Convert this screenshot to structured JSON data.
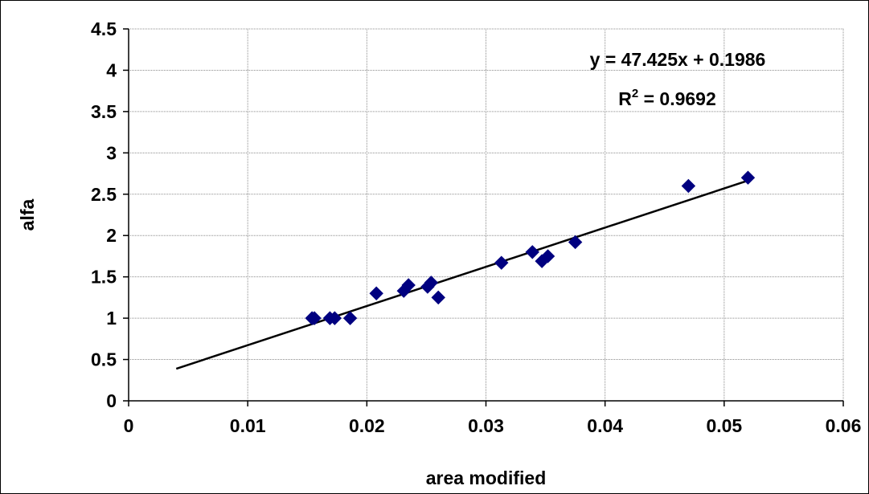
{
  "chart_data": {
    "type": "scatter",
    "title": "",
    "xlabel": "area modified",
    "ylabel": "alfa",
    "xlim": [
      0,
      0.06
    ],
    "ylim": [
      0,
      4.5
    ],
    "x_ticks": [
      0,
      0.01,
      0.02,
      0.03,
      0.04,
      0.05,
      0.06
    ],
    "x_tick_labels": [
      "0",
      "0.01",
      "0.02",
      "0.03",
      "0.04",
      "0.05",
      "0.06"
    ],
    "y_ticks": [
      0,
      0.5,
      1,
      1.5,
      2,
      2.5,
      3,
      3.5,
      4,
      4.5
    ],
    "y_tick_labels": [
      "0",
      "0.5",
      "1",
      "1.5",
      "2",
      "2.5",
      "3",
      "3.5",
      "4",
      "4.5"
    ],
    "grid": true,
    "legend": false,
    "series": [
      {
        "name": "",
        "marker": "diamond",
        "color": "#000080",
        "points": [
          {
            "x": 0.0154,
            "y": 1.0
          },
          {
            "x": 0.0156,
            "y": 1.0
          },
          {
            "x": 0.0169,
            "y": 1.0
          },
          {
            "x": 0.0173,
            "y": 1.0
          },
          {
            "x": 0.0186,
            "y": 1.0
          },
          {
            "x": 0.0208,
            "y": 1.3
          },
          {
            "x": 0.0231,
            "y": 1.33
          },
          {
            "x": 0.0235,
            "y": 1.4
          },
          {
            "x": 0.0251,
            "y": 1.38
          },
          {
            "x": 0.0254,
            "y": 1.43
          },
          {
            "x": 0.026,
            "y": 1.25
          },
          {
            "x": 0.0313,
            "y": 1.67
          },
          {
            "x": 0.0339,
            "y": 1.8
          },
          {
            "x": 0.0347,
            "y": 1.69
          },
          {
            "x": 0.0352,
            "y": 1.75
          },
          {
            "x": 0.0375,
            "y": 1.92
          },
          {
            "x": 0.047,
            "y": 2.6
          },
          {
            "x": 0.052,
            "y": 2.7
          }
        ]
      }
    ],
    "trendline": {
      "type": "linear",
      "slope": 47.425,
      "intercept": 0.1986,
      "x_range": [
        0.004,
        0.052
      ],
      "color": "#000000"
    },
    "annotations": {
      "equation": "y = 47.425x + 0.1986",
      "r2_prefix": "R",
      "r2_superscript": "2",
      "r2_suffix": " = 0.9692"
    }
  }
}
